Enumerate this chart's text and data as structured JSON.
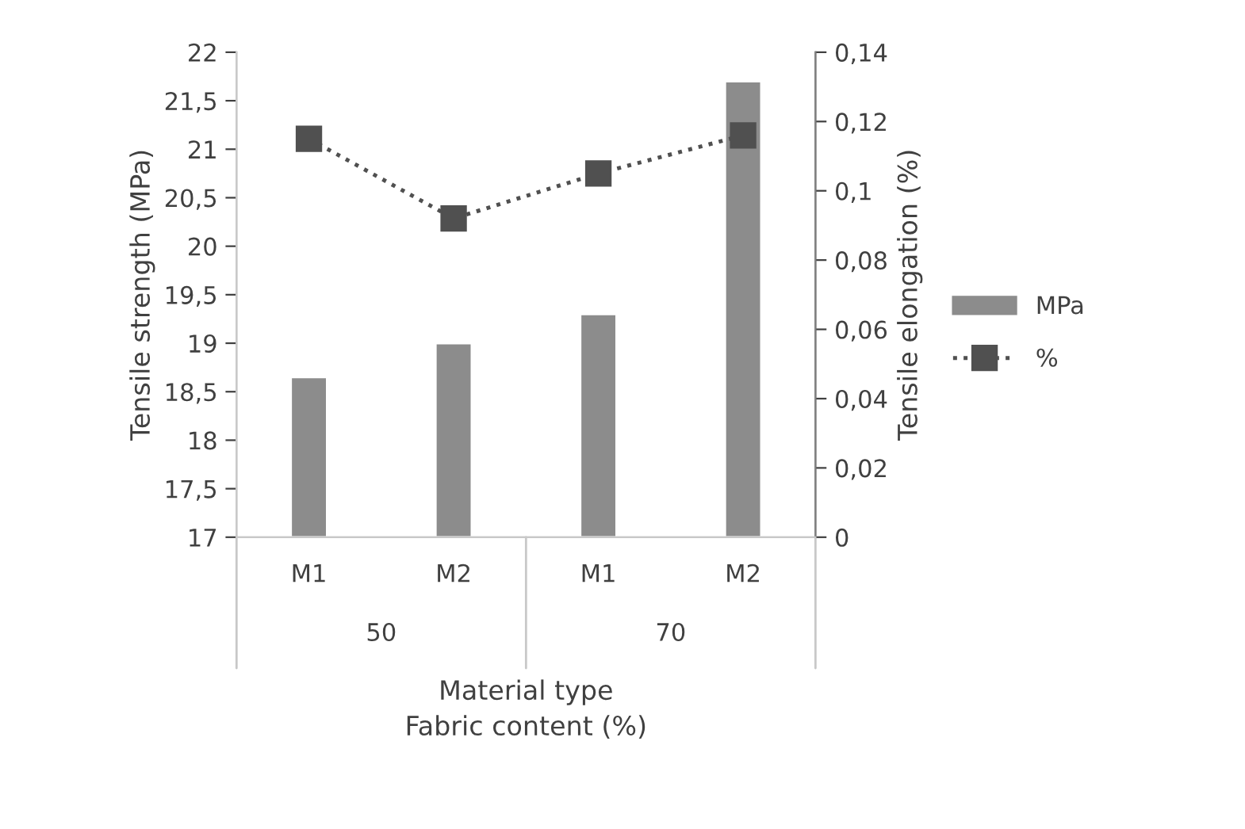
{
  "chart_data": {
    "type": "bar",
    "categories": [
      "M1",
      "M2",
      "M1",
      "M2"
    ],
    "series": [
      {
        "name": "MPa",
        "color": "#8c8c8c",
        "values": [
          18.65,
          19.0,
          19.3,
          21.7
        ]
      },
      {
        "name": "%",
        "type": "line",
        "axis": "y2",
        "color": "#505050",
        "marker": "square",
        "line_style": "dotted",
        "values": [
          0.115,
          0.092,
          0.105,
          0.116
        ]
      }
    ],
    "ylabel": "Tensile strength (MPa)",
    "y2label": "Tensile elongation (%)",
    "xlabel": "Material type\nFabric content (%)",
    "annotations": [
      "50",
      "70"
    ],
    "ylim": [
      17,
      22
    ],
    "yticks": [
      17,
      {
        "value": 17.5,
        "label": "17,5"
      },
      18,
      {
        "value": 18.5,
        "label": "18,5"
      },
      19,
      {
        "value": 19.5,
        "label": "19,5"
      },
      20,
      {
        "value": 20.5,
        "label": "20,5"
      },
      21,
      {
        "value": 21.5,
        "label": "21,5"
      },
      22
    ],
    "y2lim": [
      0,
      0.14
    ],
    "y2ticks": [
      0,
      {
        "value": 0.02,
        "label": "0,02"
      },
      {
        "value": 0.04,
        "label": "0,04"
      },
      {
        "value": 0.06,
        "label": "0,06"
      },
      {
        "value": 0.08,
        "label": "0,08"
      },
      {
        "value": 0.1,
        "label": "0,1"
      },
      {
        "value": 0.12,
        "label": "0,12"
      },
      {
        "value": 0.14,
        "label": "0,14"
      }
    ],
    "grid": false,
    "legend": "right"
  }
}
